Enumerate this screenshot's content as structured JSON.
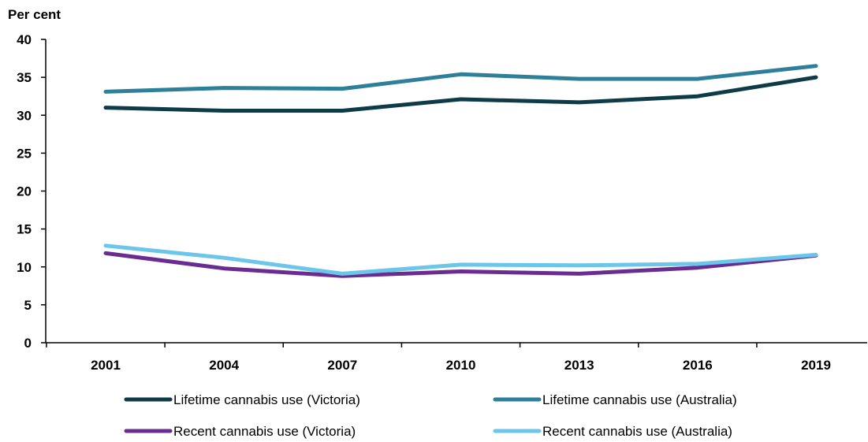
{
  "chart_data": {
    "type": "line",
    "title": "",
    "xlabel": "",
    "ylabel": "Per cent",
    "ylim": [
      0,
      40
    ],
    "yticks": [
      0,
      5,
      10,
      15,
      20,
      25,
      30,
      35,
      40
    ],
    "grid": false,
    "legend_position": "bottom",
    "x": [
      "2001",
      "2004",
      "2007",
      "2010",
      "2013",
      "2016",
      "2019"
    ],
    "series": [
      {
        "name": "Lifetime cannabis use (Victoria)",
        "color": "#0d3b47",
        "values": [
          31.0,
          30.6,
          30.6,
          32.1,
          31.7,
          32.5,
          35.0
        ]
      },
      {
        "name": "Lifetime cannabis use (Australia)",
        "color": "#2e7f99",
        "values": [
          33.1,
          33.6,
          33.5,
          35.4,
          34.8,
          34.8,
          36.5
        ]
      },
      {
        "name": "Recent cannabis use (Victoria)",
        "color": "#6a2c91",
        "values": [
          11.8,
          9.8,
          8.8,
          9.4,
          9.1,
          9.9,
          11.5
        ]
      },
      {
        "name": "Recent cannabis use (Australia)",
        "color": "#6cc6e9",
        "values": [
          12.8,
          11.2,
          9.1,
          10.3,
          10.2,
          10.4,
          11.6
        ]
      }
    ]
  }
}
